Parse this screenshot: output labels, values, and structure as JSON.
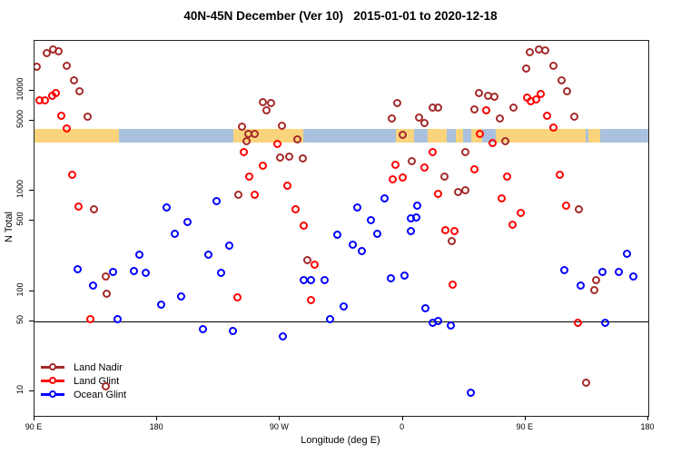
{
  "title": "40N-45N December (Ver 10)   2015-01-01 to 2020-12-18",
  "chart_data": {
    "type": "scatter",
    "title": "40N-45N December (Ver 10)   2015-01-01 to 2020-12-18",
    "xlabel": "Longitude (deg E)",
    "ylabel": "N Total",
    "x_axis": {
      "range_deg": [
        90,
        540
      ],
      "tick_lons": [
        90,
        180,
        270,
        360,
        450,
        540
      ],
      "labels": [
        "90 E",
        "180",
        "90 W",
        "0",
        "90 E",
        "180"
      ]
    },
    "y_axis": {
      "scale": "log",
      "range": [
        5.7,
        31200
      ],
      "ticks": [
        10,
        50,
        100,
        500,
        1000,
        5000,
        10000
      ],
      "tick_labels": [
        "10",
        "50",
        "100",
        "500",
        "1000",
        "5000",
        "10000"
      ]
    },
    "reference_line_n": 50,
    "grid": "off",
    "legend_position": "bottom-left-inside",
    "band": {
      "description": "land/ocean strip for 40N-45N along longitude",
      "n_range": [
        3050,
        4150
      ],
      "land_color": "#FAD47C",
      "ocean_color": "#A9C1DE",
      "segments": [
        {
          "type": "land",
          "from": 90,
          "to": 152
        },
        {
          "type": "ocean",
          "from": 152,
          "to": 236
        },
        {
          "type": "land",
          "from": 236,
          "to": 287
        },
        {
          "type": "ocean",
          "from": 287,
          "to": 355
        },
        {
          "type": "land",
          "from": 355,
          "to": 368
        },
        {
          "type": "ocean",
          "from": 368,
          "to": 378
        },
        {
          "type": "land",
          "from": 378,
          "to": 392
        },
        {
          "type": "ocean",
          "from": 392,
          "to": 399
        },
        {
          "type": "land",
          "from": 399,
          "to": 404
        },
        {
          "type": "ocean",
          "from": 404,
          "to": 410
        },
        {
          "type": "land",
          "from": 410,
          "to": 418
        },
        {
          "type": "ocean",
          "from": 418,
          "to": 428
        },
        {
          "type": "land",
          "from": 428,
          "to": 494
        },
        {
          "type": "ocean",
          "from": 494,
          "to": 496
        },
        {
          "type": "land",
          "from": 496,
          "to": 505
        },
        {
          "type": "ocean",
          "from": 505,
          "to": 540
        }
      ]
    },
    "series": [
      {
        "name": "Land Nadir",
        "color": "#A52A2A",
        "points": [
          [
            92,
            16900
          ],
          [
            99,
            23100
          ],
          [
            104,
            25100
          ],
          [
            108,
            24500
          ],
          [
            114,
            17500
          ],
          [
            119,
            12500
          ],
          [
            123.5,
            9700
          ],
          [
            129,
            5400
          ],
          [
            134,
            650
          ],
          [
            142.5,
            137
          ],
          [
            143,
            94
          ],
          [
            142.5,
            11
          ],
          [
            239.5,
            905
          ],
          [
            242.5,
            4300
          ],
          [
            246,
            3100
          ],
          [
            247,
            3660
          ],
          [
            252,
            3640
          ],
          [
            258,
            7500
          ],
          [
            260.5,
            6300
          ],
          [
            264,
            7430
          ],
          [
            270.5,
            2140
          ],
          [
            272,
            4380
          ],
          [
            277,
            2170
          ],
          [
            283,
            3230
          ],
          [
            287,
            2070
          ],
          [
            290.5,
            202
          ],
          [
            352.5,
            5190
          ],
          [
            356,
            7430
          ],
          [
            360.5,
            3600
          ],
          [
            367,
            1960
          ],
          [
            372,
            5280
          ],
          [
            376.5,
            4680
          ],
          [
            382,
            6700
          ],
          [
            386,
            6700
          ],
          [
            391,
            1380
          ],
          [
            396.5,
            310
          ],
          [
            401,
            955
          ],
          [
            406,
            995
          ],
          [
            406.5,
            2400
          ],
          [
            413,
            6400
          ],
          [
            416.5,
            9250
          ],
          [
            423,
            8800
          ],
          [
            427.5,
            8560
          ],
          [
            431.5,
            5190
          ],
          [
            435.5,
            3100
          ],
          [
            441.5,
            6700
          ],
          [
            451,
            16200
          ],
          [
            453.5,
            24000
          ],
          [
            460,
            25100
          ],
          [
            465,
            24600
          ],
          [
            471,
            17300
          ],
          [
            476.5,
            12500
          ],
          [
            480.5,
            9640
          ],
          [
            486,
            5400
          ],
          [
            489.5,
            640
          ],
          [
            494.5,
            12
          ],
          [
            500.5,
            101
          ],
          [
            502,
            128
          ]
        ]
      },
      {
        "name": "Land Glint",
        "color": "#FF0000",
        "points": [
          [
            94,
            7840
          ],
          [
            98,
            7840
          ],
          [
            103,
            8700
          ],
          [
            106,
            9350
          ],
          [
            110,
            5530
          ],
          [
            114,
            4150
          ],
          [
            118,
            1430
          ],
          [
            122.5,
            690
          ],
          [
            131,
            52
          ],
          [
            239,
            86
          ],
          [
            243.5,
            2400
          ],
          [
            248,
            1380
          ],
          [
            252,
            900
          ],
          [
            258,
            1740
          ],
          [
            268.5,
            2890
          ],
          [
            276,
            1120
          ],
          [
            282,
            650
          ],
          [
            287.5,
            445
          ],
          [
            293,
            81
          ],
          [
            296,
            182
          ],
          [
            353,
            1290
          ],
          [
            355,
            1810
          ],
          [
            360.5,
            1340
          ],
          [
            376.5,
            1670
          ],
          [
            382,
            2400
          ],
          [
            386,
            930
          ],
          [
            391.5,
            400
          ],
          [
            397,
            115
          ],
          [
            398,
            395
          ],
          [
            413,
            1630
          ],
          [
            417,
            3680
          ],
          [
            421.5,
            6300
          ],
          [
            426,
            2950
          ],
          [
            433,
            835
          ],
          [
            437,
            1380
          ],
          [
            440.5,
            450
          ],
          [
            446.5,
            600
          ],
          [
            451.5,
            8400
          ],
          [
            454,
            7700
          ],
          [
            458,
            8100
          ],
          [
            461.5,
            9200
          ],
          [
            466,
            5530
          ],
          [
            471,
            4190
          ],
          [
            475.5,
            1440
          ],
          [
            480,
            700
          ],
          [
            489,
            48
          ]
        ]
      },
      {
        "name": "Ocean Glint",
        "color": "#0000FF",
        "points": [
          [
            122,
            162
          ],
          [
            133,
            112
          ],
          [
            148,
            155
          ],
          [
            151.5,
            52
          ],
          [
            163,
            157
          ],
          [
            167.5,
            230
          ],
          [
            172,
            150
          ],
          [
            183.5,
            72
          ],
          [
            187.5,
            675
          ],
          [
            193.5,
            365
          ],
          [
            198,
            87
          ],
          [
            202.5,
            480
          ],
          [
            213.5,
            41
          ],
          [
            217.5,
            226
          ],
          [
            224,
            780
          ],
          [
            227,
            150
          ],
          [
            233,
            278
          ],
          [
            236,
            40
          ],
          [
            272.5,
            35
          ],
          [
            288,
            127
          ],
          [
            293,
            127
          ],
          [
            303,
            127
          ],
          [
            307,
            52
          ],
          [
            312.5,
            360
          ],
          [
            317,
            69
          ],
          [
            323.5,
            287
          ],
          [
            327,
            680
          ],
          [
            330,
            247
          ],
          [
            337,
            500
          ],
          [
            341.5,
            365
          ],
          [
            347,
            835
          ],
          [
            351.5,
            132
          ],
          [
            361.5,
            141
          ],
          [
            366,
            520
          ],
          [
            366.5,
            395
          ],
          [
            370.5,
            540
          ],
          [
            371,
            700
          ],
          [
            377,
            66
          ],
          [
            382,
            48
          ],
          [
            386.5,
            50
          ],
          [
            395.5,
            45
          ],
          [
            410,
            9.5
          ],
          [
            479,
            159
          ],
          [
            491,
            112
          ],
          [
            507,
            155
          ],
          [
            508.5,
            48
          ],
          [
            519,
            152
          ],
          [
            525,
            235
          ],
          [
            529.5,
            138
          ]
        ]
      }
    ]
  }
}
